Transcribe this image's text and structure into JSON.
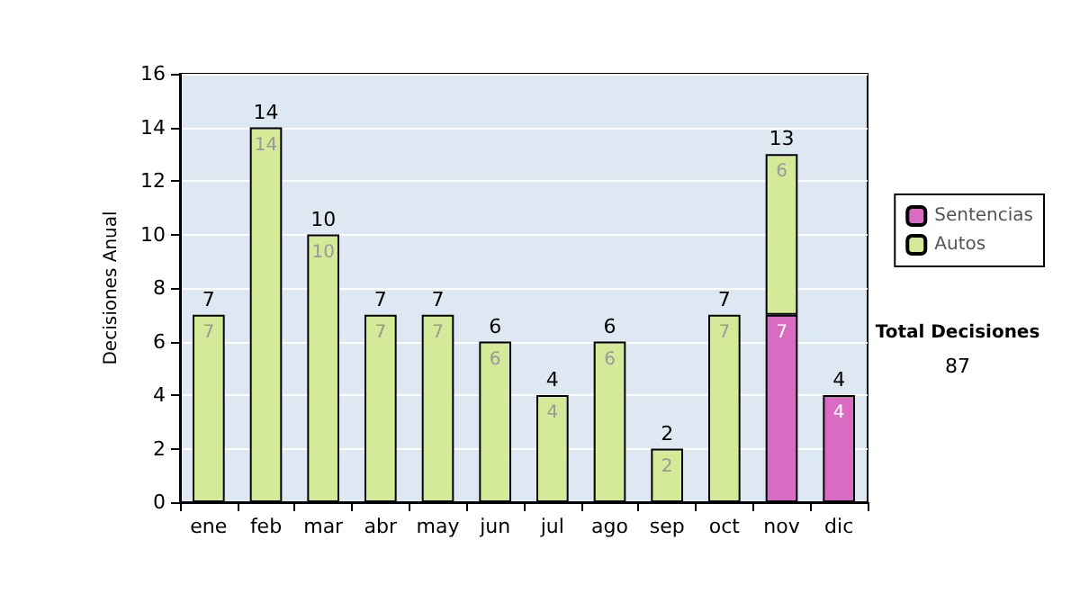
{
  "chart_data": {
    "type": "bar",
    "stacked": true,
    "ylabel": "Decisiones Anual",
    "categories": [
      "ene",
      "feb",
      "mar",
      "abr",
      "may",
      "jun",
      "jul",
      "ago",
      "sep",
      "oct",
      "nov",
      "dic"
    ],
    "series": [
      {
        "name": "Sentencias",
        "color": "#d96cc2",
        "values": [
          0,
          0,
          0,
          0,
          0,
          0,
          0,
          0,
          0,
          0,
          7,
          4
        ],
        "value_labels": [
          null,
          null,
          null,
          null,
          null,
          null,
          null,
          null,
          null,
          null,
          "7",
          "4"
        ]
      },
      {
        "name": "Autos",
        "color": "#d4ea98",
        "values": [
          7,
          14,
          10,
          7,
          7,
          6,
          4,
          6,
          2,
          7,
          6,
          0
        ],
        "value_labels": [
          "7",
          "14",
          "10",
          "7",
          "7",
          "6",
          "4",
          "6",
          "2",
          "7",
          "6",
          null
        ]
      }
    ],
    "totals": [
      "7",
      "14",
      "10",
      "7",
      "7",
      "6",
      "4",
      "6",
      "2",
      "7",
      "13",
      "4"
    ],
    "ylim": [
      0,
      16
    ],
    "yticks": [
      0,
      2,
      4,
      6,
      8,
      10,
      12,
      14,
      16
    ],
    "grid": "y",
    "legend": "right",
    "annotations": [
      "Total Decisiones",
      "87"
    ]
  }
}
